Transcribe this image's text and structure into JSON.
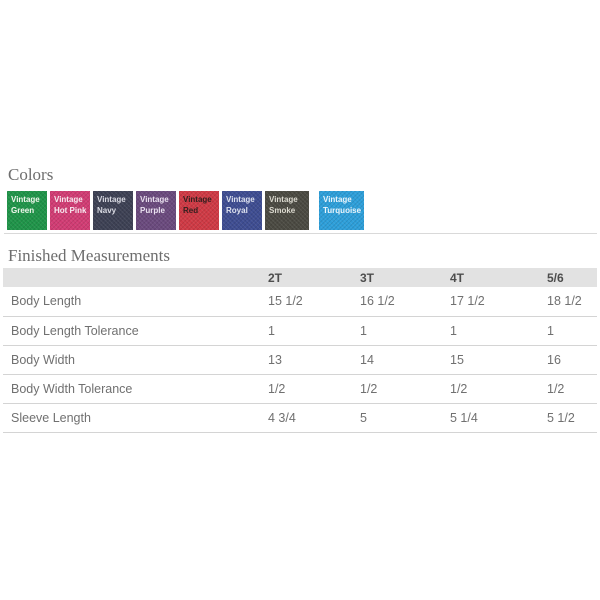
{
  "colors": {
    "heading": "Colors",
    "swatches": [
      {
        "name": "Vintage Green",
        "line1": "Vintage",
        "line2": "Green",
        "bg": "#1f9549",
        "fg": "#f2f7ee"
      },
      {
        "name": "Vintage Hot Pink",
        "line1": "Vintage",
        "line2": "Hot Pink",
        "bg": "#d23c74",
        "fg": "#f7e9ef"
      },
      {
        "name": "Vintage Navy",
        "line1": "Vintage",
        "line2": "Navy",
        "bg": "#3d4154",
        "fg": "#d9dae2"
      },
      {
        "name": "Vintage Purple",
        "line1": "Vintage",
        "line2": "Purple",
        "bg": "#6b4a7e",
        "fg": "#e9e0ef"
      },
      {
        "name": "Vintage Red",
        "line1": "Vintage",
        "line2": "Red",
        "bg": "#d03a45",
        "fg": "#33201f"
      },
      {
        "name": "Vintage Royal",
        "line1": "Vintage",
        "line2": "Royal",
        "bg": "#3e4d92",
        "fg": "#dde1ef"
      },
      {
        "name": "Vintage Smoke",
        "line1": "Vintage",
        "line2": "Smoke",
        "bg": "#4b4a42",
        "fg": "#dcdad0"
      },
      {
        "name": "Vintage Turquoise",
        "line1": "Vintage",
        "line2": "Turquoise",
        "bg": "#2d9fda",
        "fg": "#eaf5fc"
      }
    ]
  },
  "measurements": {
    "heading": "Finished Measurements",
    "columns": [
      "2T",
      "3T",
      "4T",
      "5/6"
    ],
    "rows": [
      {
        "label": "Body Length",
        "values": [
          "15 1/2",
          "16 1/2",
          "17 1/2",
          "18 1/2"
        ]
      },
      {
        "label": "Body Length Tolerance",
        "values": [
          "1",
          "1",
          "1",
          "1"
        ]
      },
      {
        "label": "Body Width",
        "values": [
          "13",
          "14",
          "15",
          "16"
        ]
      },
      {
        "label": "Body Width Tolerance",
        "values": [
          "1/2",
          "1/2",
          "1/2",
          "1/2"
        ]
      },
      {
        "label": "Sleeve Length",
        "values": [
          "4 3/4",
          "5",
          "5 1/4",
          "5 1/2"
        ]
      }
    ]
  }
}
